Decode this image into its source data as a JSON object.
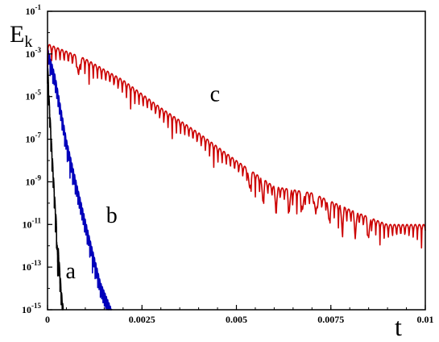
{
  "chart_data": {
    "type": "line",
    "title": "",
    "xlabel": "t",
    "ylabel_main": "E",
    "ylabel_sub": "k",
    "xscale": "linear",
    "yscale": "log",
    "xlim": [
      0,
      0.01
    ],
    "ylim": [
      1e-15,
      0.1
    ],
    "grid": false,
    "legend": "none",
    "x_ticks": [
      {
        "value": 0,
        "label": "0"
      },
      {
        "value": 0.0025,
        "label": "0.0025"
      },
      {
        "value": 0.005,
        "label": "0.005"
      },
      {
        "value": 0.0075,
        "label": "0.0075"
      },
      {
        "value": 0.01,
        "label": "0.01"
      }
    ],
    "y_ticks": [
      {
        "value": 0.1,
        "base": "10",
        "exp": "-1"
      },
      {
        "value": 0.001,
        "base": "10",
        "exp": "-3"
      },
      {
        "value": 1e-05,
        "base": "10",
        "exp": "-5"
      },
      {
        "value": 1e-07,
        "base": "10",
        "exp": "-7"
      },
      {
        "value": 1e-09,
        "base": "10",
        "exp": "-9"
      },
      {
        "value": 1e-11,
        "base": "10",
        "exp": "-11"
      },
      {
        "value": 1e-13,
        "base": "10",
        "exp": "-13"
      },
      {
        "value": 1e-15,
        "base": "10",
        "exp": "-15"
      }
    ],
    "series": [
      {
        "label": "a",
        "color": "#000000",
        "label_at": {
          "x": 0.00048,
          "y": 3e-14
        },
        "envelope": [
          [
            0,
            0.0005
          ],
          [
            4e-05,
            1e-05
          ],
          [
            0.0001,
            1e-07
          ],
          [
            0.0002,
            1e-10
          ],
          [
            0.00028,
            1e-12
          ],
          [
            0.00036,
            1e-14
          ],
          [
            0.00042,
            1e-15
          ]
        ],
        "osc_period": 3e-05,
        "osc_dips": [
          0.00025,
          0.00027
        ]
      },
      {
        "label": "b",
        "color": "#0000bb",
        "label_at": {
          "x": 0.00155,
          "y": 1.2e-11
        },
        "envelope": [
          [
            0,
            0.002
          ],
          [
            0.0002,
            0.0001
          ],
          [
            0.0005,
            1e-07
          ],
          [
            0.0008,
            5e-10
          ],
          [
            0.0011,
            3e-12
          ],
          [
            0.0014,
            2e-14
          ],
          [
            0.0017,
            1e-15
          ]
        ],
        "osc_period": 3.5e-05,
        "osc_dips": []
      },
      {
        "label": "c",
        "color": "#cc0000",
        "label_at": {
          "x": 0.0043,
          "y": 6e-06
        },
        "envelope": [
          [
            0,
            0.003
          ],
          [
            0.001,
            0.0006
          ],
          [
            0.002,
            6e-05
          ],
          [
            0.003,
            3e-06
          ],
          [
            0.004,
            2e-07
          ],
          [
            0.005,
            1e-08
          ],
          [
            0.006,
            6e-10
          ],
          [
            0.007,
            3e-10
          ],
          [
            0.008,
            5e-11
          ],
          [
            0.009,
            1e-11
          ],
          [
            0.01,
            1e-11
          ]
        ],
        "osc_period": 0.00011,
        "osc_dips": [
          0.00082,
          0.00535,
          0.0057,
          0.00605,
          0.0064,
          0.00675,
          0.0071,
          0.00745,
          0.0078,
          0.00815,
          0.0085
        ]
      }
    ]
  }
}
